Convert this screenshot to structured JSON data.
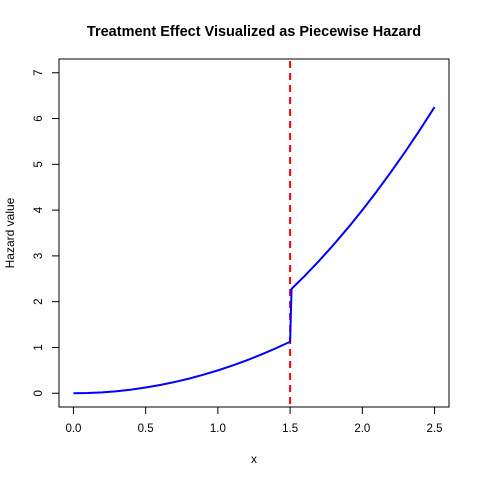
{
  "chart_data": {
    "type": "line",
    "title": "Treatment Effect Visualized as Piecewise Hazard",
    "xlabel": "x",
    "ylabel": "Hazard value",
    "xlim": [
      -0.1,
      2.6
    ],
    "ylim": [
      -0.3,
      7.3
    ],
    "xticks": [
      "0.0",
      "0.5",
      "1.0",
      "1.5",
      "2.0",
      "2.5"
    ],
    "yticks": [
      "0",
      "1",
      "2",
      "3",
      "4",
      "5",
      "6",
      "7"
    ],
    "grid": false,
    "legend": "none",
    "series": [
      {
        "color": "#0000ff",
        "x": [
          0,
          0.1,
          0.2,
          0.3,
          0.4,
          0.5,
          0.6,
          0.7,
          0.8,
          0.9,
          1.0,
          1.1,
          1.2,
          1.3,
          1.4,
          1.5,
          1.51,
          1.6,
          1.7,
          1.8,
          1.9,
          2.0,
          2.1,
          2.2,
          2.3,
          2.4,
          2.5
        ],
        "y": [
          0,
          0.005,
          0.02,
          0.045,
          0.08,
          0.125,
          0.18,
          0.245,
          0.32,
          0.405,
          0.5,
          0.605,
          0.72,
          0.845,
          0.98,
          1.125,
          2.28,
          2.56,
          2.89,
          3.24,
          3.61,
          4.0,
          4.41,
          4.84,
          5.29,
          5.76,
          6.25
        ]
      }
    ],
    "reference_lines": [
      {
        "orientation": "vertical",
        "x": 1.5,
        "color": "#ff0000",
        "style": "dashed"
      }
    ]
  }
}
